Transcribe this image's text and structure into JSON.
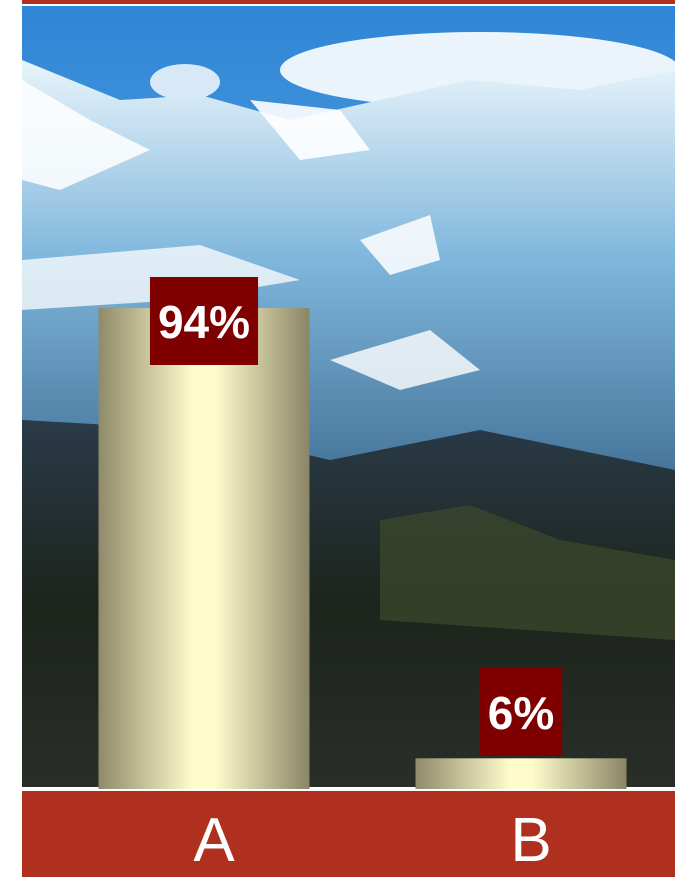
{
  "chart_data": {
    "type": "bar",
    "categories": [
      "A",
      "B"
    ],
    "values": [
      94,
      6
    ],
    "value_labels": [
      "94%",
      "6%"
    ],
    "color": "#fffccc",
    "label_color": "#7f0000",
    "band_color": "#b03020"
  }
}
